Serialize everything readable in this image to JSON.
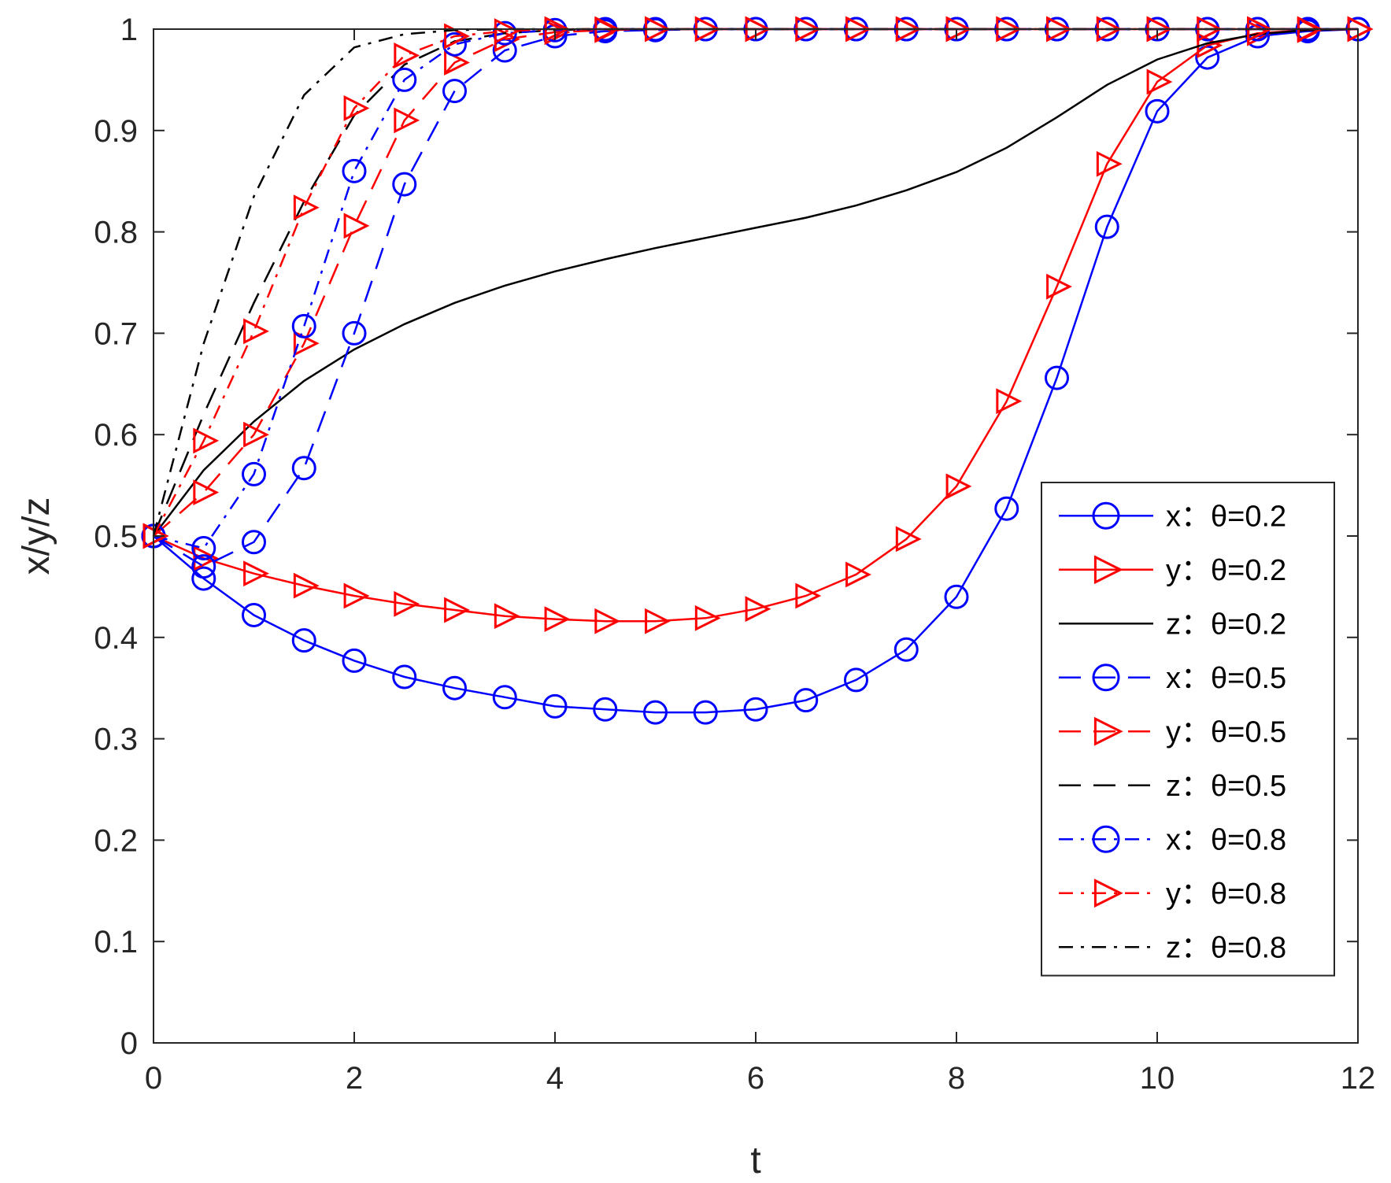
{
  "chart_data": {
    "type": "line",
    "title": "",
    "xlabel": "t",
    "ylabel": "x/y/z",
    "xlim": [
      0,
      12
    ],
    "ylim": [
      0,
      1
    ],
    "xticks": [
      0,
      2,
      4,
      6,
      8,
      10,
      12
    ],
    "xtick_labels": [
      "0",
      "2",
      "4",
      "6",
      "8",
      "10",
      "12"
    ],
    "yticks": [
      0,
      0.1,
      0.2,
      0.3,
      0.4,
      0.5,
      0.6,
      0.7,
      0.8,
      0.9,
      1
    ],
    "ytick_labels": [
      "0",
      "0.1",
      "0.2",
      "0.3",
      "0.4",
      "0.5",
      "0.6",
      "0.7",
      "0.8",
      "0.9",
      "1"
    ],
    "legend_position": "bottom-right",
    "grid": false,
    "x": [
      0,
      0.5,
      1,
      1.5,
      2,
      2.5,
      3,
      3.5,
      4,
      4.5,
      5,
      5.5,
      6,
      6.5,
      7,
      7.5,
      8,
      8.5,
      9,
      9.5,
      10,
      10.5,
      11,
      11.5,
      12
    ],
    "series": [
      {
        "name": "x：θ=0.2",
        "color": "#0000ff",
        "dash": "solid",
        "marker": "circle",
        "values": [
          0.5,
          0.458,
          0.422,
          0.397,
          0.377,
          0.361,
          0.35,
          0.341,
          0.332,
          0.329,
          0.326,
          0.326,
          0.329,
          0.338,
          0.358,
          0.388,
          0.44,
          0.527,
          0.656,
          0.805,
          0.919,
          0.972,
          0.993,
          0.998,
          1.0
        ]
      },
      {
        "name": "y：θ=0.2",
        "color": "#ff0000",
        "dash": "solid",
        "marker": "triangle",
        "values": [
          0.5,
          0.478,
          0.463,
          0.451,
          0.441,
          0.433,
          0.427,
          0.421,
          0.418,
          0.416,
          0.416,
          0.419,
          0.428,
          0.441,
          0.462,
          0.497,
          0.549,
          0.633,
          0.746,
          0.867,
          0.948,
          0.984,
          0.996,
          0.999,
          1.0
        ]
      },
      {
        "name": "z：θ=0.2",
        "color": "#000000",
        "dash": "solid",
        "marker": "none",
        "x": [
          0,
          0.5,
          1,
          1.5,
          2,
          2.5,
          3,
          3.5,
          4,
          4.5,
          5,
          5.5,
          6,
          6.5,
          7,
          7.5,
          8,
          8.5,
          9,
          9.5,
          10,
          10.5,
          11,
          11.5,
          12
        ],
        "values": [
          0.5,
          0.565,
          0.613,
          0.653,
          0.684,
          0.709,
          0.73,
          0.747,
          0.761,
          0.773,
          0.784,
          0.794,
          0.804,
          0.814,
          0.826,
          0.841,
          0.859,
          0.883,
          0.913,
          0.945,
          0.97,
          0.986,
          0.995,
          0.999,
          1.0
        ]
      },
      {
        "name": "x：θ=0.5",
        "color": "#0000ff",
        "dash": "longdash",
        "marker": "circle",
        "values": [
          0.5,
          0.47,
          0.494,
          0.567,
          0.7,
          0.847,
          0.939,
          0.979,
          0.993,
          0.998,
          0.999,
          1.0,
          1.0,
          1.0,
          1.0,
          1.0,
          1.0,
          1.0,
          1.0,
          1.0,
          1.0,
          1.0,
          1.0,
          1.0,
          1.0
        ]
      },
      {
        "name": "y：θ=0.5",
        "color": "#ff0000",
        "dash": "longdash",
        "marker": "triangle",
        "values": [
          0.5,
          0.543,
          0.6,
          0.69,
          0.806,
          0.91,
          0.967,
          0.99,
          0.997,
          0.999,
          1.0,
          1.0,
          1.0,
          1.0,
          1.0,
          1.0,
          1.0,
          1.0,
          1.0,
          1.0,
          1.0,
          1.0,
          1.0,
          1.0,
          1.0
        ]
      },
      {
        "name": "z：θ=0.5",
        "color": "#000000",
        "dash": "longdash",
        "marker": "none",
        "x": [
          0,
          0.5,
          1,
          1.5,
          2,
          2.5,
          3,
          3.5,
          4,
          4.5,
          5,
          5.5,
          6,
          6.5,
          7,
          7.5,
          8,
          8.5,
          9,
          9.5,
          10,
          10.5,
          11,
          11.5,
          12
        ],
        "values": [
          0.5,
          0.62,
          0.73,
          0.83,
          0.915,
          0.965,
          0.988,
          0.996,
          0.999,
          1.0,
          1.0,
          1.0,
          1.0,
          1.0,
          1.0,
          1.0,
          1.0,
          1.0,
          1.0,
          1.0,
          1.0,
          1.0,
          1.0,
          1.0,
          1.0
        ]
      },
      {
        "name": "x：θ=0.8",
        "color": "#0000ff",
        "dash": "dashdot",
        "marker": "circle",
        "values": [
          0.5,
          0.488,
          0.561,
          0.707,
          0.86,
          0.95,
          0.985,
          0.996,
          0.999,
          1.0,
          1.0,
          1.0,
          1.0,
          1.0,
          1.0,
          1.0,
          1.0,
          1.0,
          1.0,
          1.0,
          1.0,
          1.0,
          1.0,
          1.0,
          1.0
        ]
      },
      {
        "name": "y：θ=0.8",
        "color": "#ff0000",
        "dash": "dashdot",
        "marker": "triangle",
        "values": [
          0.5,
          0.594,
          0.702,
          0.824,
          0.922,
          0.974,
          0.993,
          0.998,
          1.0,
          1.0,
          1.0,
          1.0,
          1.0,
          1.0,
          1.0,
          1.0,
          1.0,
          1.0,
          1.0,
          1.0,
          1.0,
          1.0,
          1.0,
          1.0,
          1.0
        ]
      },
      {
        "name": "z：θ=0.8",
        "color": "#000000",
        "dash": "dashdot",
        "marker": "none",
        "x": [
          0,
          0.5,
          1,
          1.5,
          2,
          2.5,
          3,
          3.5,
          4,
          4.5,
          5,
          5.5,
          6,
          6.5,
          7,
          7.5,
          8,
          8.5,
          9,
          9.5,
          10,
          10.5,
          11,
          11.5,
          12
        ],
        "values": [
          0.5,
          0.69,
          0.835,
          0.935,
          0.982,
          0.995,
          0.999,
          1.0,
          1.0,
          1.0,
          1.0,
          1.0,
          1.0,
          1.0,
          1.0,
          1.0,
          1.0,
          1.0,
          1.0,
          1.0,
          1.0,
          1.0,
          1.0,
          1.0,
          1.0
        ]
      }
    ]
  }
}
